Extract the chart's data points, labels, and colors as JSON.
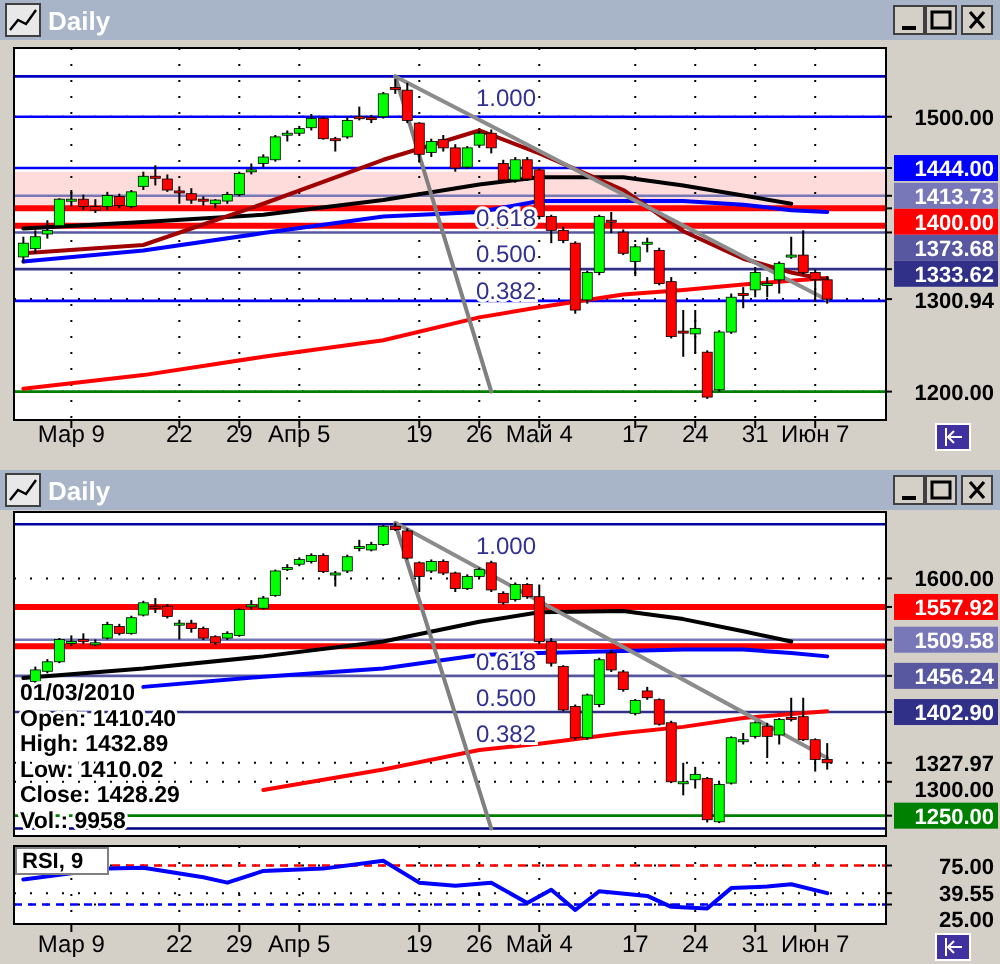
{
  "chart_data": [
    {
      "type": "candlestick",
      "title": "Daily",
      "grid": true,
      "categories": [
        null,
        null,
        null,
        null,
        "Мар 9",
        null,
        null,
        null,
        null,
        null,
        null,
        null,
        null,
        "22",
        null,
        null,
        null,
        null,
        "29",
        null,
        null,
        null,
        null,
        "Апр 5",
        null,
        null,
        null,
        null,
        null,
        null,
        null,
        null,
        null,
        "19",
        null,
        null,
        null,
        null,
        "26",
        null,
        null,
        null,
        null,
        "Май 4",
        null,
        null,
        null,
        null,
        null,
        null,
        null,
        "17",
        null,
        null,
        null,
        null,
        "24",
        null,
        null,
        null,
        null,
        "31",
        null,
        null,
        null,
        null,
        "Июн 7",
        null
      ],
      "ylim": [
        1169,
        1575
      ],
      "yticks": [
        {
          "value": 1200,
          "label": "1200.00"
        },
        {
          "value": 1500,
          "label": "1500.00"
        },
        {
          "value": 1300.94,
          "label": "1300.94"
        }
      ],
      "ohlc": [
        [
          1347,
          1369,
          1340,
          1362
        ],
        [
          1356,
          1376,
          1351,
          1369
        ],
        [
          1372,
          1387,
          1367,
          1376
        ],
        [
          1381,
          1411,
          1379,
          1410
        ],
        [
          1408,
          1420,
          1402,
          1410
        ],
        [
          1410,
          1415,
          1398,
          1402
        ],
        [
          1402,
          1410,
          1395,
          1398
        ],
        [
          1402,
          1418,
          1398,
          1414
        ],
        [
          1413,
          1416,
          1400,
          1403
        ],
        [
          1402,
          1420,
          1400,
          1418
        ],
        [
          1424,
          1440,
          1420,
          1435
        ],
        [
          1435,
          1447,
          1425,
          1434
        ],
        [
          1432,
          1437,
          1418,
          1420
        ],
        [
          1419,
          1424,
          1405,
          1417
        ],
        [
          1416,
          1422,
          1405,
          1409
        ],
        [
          1410,
          1413,
          1403,
          1408
        ],
        [
          1405,
          1410,
          1400,
          1409
        ],
        [
          1408,
          1418,
          1405,
          1415
        ],
        [
          1415,
          1440,
          1413,
          1438
        ],
        [
          1441,
          1449,
          1437,
          1442
        ],
        [
          1449,
          1459,
          1445,
          1456
        ],
        [
          1453,
          1480,
          1451,
          1478
        ],
        [
          1482,
          1485,
          1473,
          1482
        ],
        [
          1482,
          1490,
          1479,
          1487
        ],
        [
          1488,
          1503,
          1485,
          1498
        ],
        [
          1498,
          1500,
          1475,
          1476
        ],
        [
          1476,
          1478,
          1462,
          1475
        ],
        [
          1478,
          1500,
          1476,
          1496
        ],
        [
          1500,
          1511,
          1496,
          1499
        ],
        [
          1499,
          1502,
          1493,
          1497
        ],
        [
          1500,
          1527,
          1498,
          1525
        ],
        [
          1532,
          1541,
          1525,
          1531
        ],
        [
          1529,
          1537,
          1493,
          1496
        ],
        [
          1493,
          1494,
          1450,
          1459
        ],
        [
          1461,
          1476,
          1456,
          1473
        ],
        [
          1475,
          1480,
          1462,
          1466
        ],
        [
          1466,
          1470,
          1440,
          1444
        ],
        [
          1445,
          1468,
          1443,
          1466
        ],
        [
          1469,
          1485,
          1466,
          1482
        ],
        [
          1482,
          1486,
          1460,
          1466
        ],
        [
          1449,
          1453,
          1428,
          1431
        ],
        [
          1431,
          1456,
          1428,
          1453
        ],
        [
          1453,
          1456,
          1430,
          1432
        ],
        [
          1442,
          1444,
          1388,
          1391
        ],
        [
          1391,
          1393,
          1362,
          1376
        ],
        [
          1376,
          1380,
          1362,
          1365
        ],
        [
          1362,
          1364,
          1285,
          1289
        ],
        [
          1300,
          1332,
          1296,
          1330
        ],
        [
          1330,
          1393,
          1327,
          1391
        ],
        [
          1387,
          1396,
          1373,
          1386
        ],
        [
          1374,
          1377,
          1349,
          1351
        ],
        [
          1342,
          1361,
          1326,
          1358
        ],
        [
          1363,
          1368,
          1352,
          1363
        ],
        [
          1354,
          1357,
          1316,
          1318
        ],
        [
          1320,
          1325,
          1258,
          1260
        ],
        [
          1266,
          1289,
          1238,
          1265
        ],
        [
          1263,
          1289,
          1242,
          1269
        ],
        [
          1243,
          1245,
          1192,
          1194
        ],
        [
          1202,
          1267,
          1200,
          1265
        ],
        [
          1265,
          1307,
          1263,
          1303
        ],
        [
          1307,
          1314,
          1291,
          1306
        ],
        [
          1311,
          1336,
          1303,
          1330
        ],
        [
          1318,
          1325,
          1303,
          1318
        ],
        [
          1322,
          1342,
          1307,
          1340
        ],
        [
          1349,
          1369,
          1345,
          1349
        ],
        [
          1349,
          1376,
          1328,
          1330
        ],
        [
          1330,
          1333,
          1298,
          1322
        ],
        [
          1322,
          1326,
          1296,
          1300.94
        ]
      ],
      "series": [
        {
          "type": "line",
          "color": "#ff0000",
          "values": [
            1203,
            null,
            null,
            null,
            null,
            null,
            null,
            null,
            null,
            null,
            1218,
            null,
            null,
            null,
            null,
            null,
            null,
            null,
            null,
            null,
            1238,
            null,
            null,
            null,
            null,
            null,
            null,
            null,
            null,
            null,
            1256,
            null,
            null,
            null,
            null,
            null,
            null,
            null,
            1281,
            null,
            null,
            null,
            null,
            1292,
            null,
            null,
            null,
            null,
            null,
            null,
            1306,
            null,
            null,
            null,
            null,
            1311,
            null,
            null,
            null,
            null,
            1317,
            null,
            null,
            null,
            1321,
            null,
            null,
            1324
          ]
        },
        {
          "type": "line",
          "color": "#0000ff",
          "values": [
            1342,
            null,
            null,
            null,
            null,
            null,
            null,
            null,
            null,
            null,
            1354,
            null,
            null,
            null,
            null,
            null,
            null,
            null,
            null,
            null,
            1373,
            null,
            null,
            null,
            null,
            null,
            null,
            null,
            null,
            null,
            1391,
            null,
            null,
            null,
            null,
            null,
            null,
            null,
            1396,
            null,
            null,
            null,
            null,
            1408,
            null,
            null,
            null,
            null,
            null,
            null,
            1408,
            null,
            null,
            null,
            null,
            1408,
            null,
            null,
            null,
            null,
            1404,
            null,
            null,
            null,
            1398,
            null,
            null,
            1396
          ]
        },
        {
          "type": "line",
          "color": "#000000",
          "values": [
            1378,
            null,
            null,
            null,
            null,
            null,
            null,
            null,
            null,
            null,
            1385,
            null,
            null,
            null,
            null,
            null,
            null,
            null,
            null,
            null,
            1393,
            null,
            null,
            null,
            null,
            null,
            null,
            null,
            null,
            null,
            1409,
            null,
            null,
            null,
            null,
            null,
            null,
            null,
            1426,
            null,
            null,
            null,
            null,
            1434,
            null,
            null,
            null,
            null,
            null,
            null,
            1434,
            null,
            null,
            null,
            null,
            1425,
            null,
            null,
            null,
            null,
            1414,
            null,
            null,
            null,
            1405,
            null,
            null,
            null
          ]
        },
        {
          "type": "line",
          "color": "#a00000",
          "values": [
            1351,
            null,
            null,
            null,
            null,
            null,
            null,
            null,
            null,
            null,
            1360,
            null,
            null,
            null,
            null,
            null,
            null,
            null,
            null,
            null,
            1405,
            null,
            null,
            null,
            null,
            null,
            null,
            null,
            null,
            null,
            1453,
            null,
            null,
            null,
            null,
            null,
            null,
            null,
            1485,
            null,
            null,
            null,
            null,
            1460,
            null,
            null,
            null,
            null,
            null,
            null,
            1420,
            null,
            null,
            null,
            null,
            1375,
            null,
            null,
            null,
            null,
            1345,
            null,
            null,
            null,
            1330,
            null,
            null,
            1322
          ]
        },
        {
          "type": "line",
          "color": "#8c8c8c",
          "values": [
            null,
            null,
            null,
            null,
            null,
            null,
            null,
            null,
            null,
            null,
            null,
            null,
            null,
            null,
            null,
            null,
            null,
            null,
            null,
            null,
            null,
            null,
            null,
            null,
            null,
            null,
            null,
            null,
            null,
            null,
            null,
            1544,
            null,
            null,
            null,
            null,
            null,
            null,
            null,
            null,
            null,
            null,
            null,
            null,
            null,
            null,
            null,
            null,
            null,
            null,
            null,
            null,
            null,
            null,
            null,
            null,
            null,
            null,
            null,
            null,
            null,
            null,
            null,
            null,
            null,
            null,
            null,
            1300
          ]
        },
        {
          "type": "line",
          "color": "#808080",
          "values": [
            null,
            null,
            null,
            null,
            null,
            null,
            null,
            null,
            null,
            null,
            null,
            null,
            null,
            null,
            null,
            null,
            null,
            null,
            null,
            null,
            null,
            null,
            null,
            null,
            null,
            null,
            null,
            null,
            null,
            null,
            null,
            1544,
            null,
            null,
            null,
            null,
            null,
            null,
            null,
            1200,
            null,
            null,
            null,
            null,
            null,
            null,
            null,
            null,
            null,
            null,
            null,
            null,
            null,
            null,
            null,
            null,
            null,
            null,
            null,
            null,
            null,
            null,
            null,
            null,
            null,
            null,
            null,
            null
          ]
        }
      ],
      "bands": [
        {
          "axis": "y",
          "from": 1402,
          "to": 1440,
          "color": "#ffdcdc"
        }
      ],
      "ref_lines": [
        {
          "axis": "y",
          "value": 1544,
          "label": null,
          "color": "#0000c0"
        },
        {
          "axis": "y",
          "value": 1500,
          "label": null,
          "color": "#0000ff"
        },
        {
          "axis": "y",
          "value": 1444,
          "label": "1444.00",
          "color": "#0000ff"
        },
        {
          "axis": "y",
          "value": 1413.73,
          "label": "1413.73",
          "color": "#7878b8"
        },
        {
          "axis": "y",
          "value": 1400,
          "label": "1400.00",
          "color": "#ff0000"
        },
        {
          "axis": "y",
          "value": 1381,
          "label": null,
          "color": "#ff0000"
        },
        {
          "axis": "y",
          "value": 1373.68,
          "label": "1373.68",
          "color": "#5858a0"
        },
        {
          "axis": "y",
          "value": 1333.62,
          "label": "1333.62",
          "color": "#303088"
        },
        {
          "axis": "y",
          "value": 1299,
          "label": null,
          "color": "#0000ff"
        },
        {
          "axis": "y",
          "value": 1200,
          "label": null,
          "color": "#008000"
        }
      ],
      "annotations": [
        {
          "text": "1.000",
          "y": 1544
        },
        {
          "text": "0.618",
          "y": 1413.73
        },
        {
          "text": "0.500",
          "y": 1373.68
        },
        {
          "text": "0.382",
          "y": 1333.62
        }
      ]
    },
    {
      "type": "candlestick",
      "title": "Daily",
      "grid": "y",
      "tick_labels": "y",
      "categories": [
        null,
        null,
        null,
        null,
        null,
        null,
        null,
        null,
        null,
        null,
        null,
        null,
        null,
        null,
        null,
        null,
        null,
        null,
        null,
        null,
        null,
        null,
        null,
        null,
        null,
        null,
        null,
        null,
        null,
        null,
        null,
        null,
        null,
        null,
        null,
        null,
        null,
        null,
        null,
        null,
        null,
        null,
        null,
        null,
        null,
        null,
        null,
        null,
        null,
        null,
        null,
        null,
        null,
        null,
        null,
        null,
        null,
        null,
        null,
        null,
        null,
        null,
        null,
        null,
        null,
        null,
        null,
        null
      ],
      "ylim": [
        1220,
        1698
      ],
      "yticks": [
        {
          "value": 1300,
          "label": "1300.00"
        },
        {
          "value": 1600,
          "label": "1600.00"
        },
        {
          "value": 1327.97,
          "label": "1327.97"
        }
      ],
      "ohlc": [
        null,
        [
          1448,
          1470,
          1443,
          1465
        ],
        [
          1463,
          1481,
          1460,
          1477
        ],
        [
          1477,
          1512,
          1475,
          1510
        ],
        [
          1507,
          1516,
          1500,
          1507
        ],
        [
          1510,
          1519,
          1503,
          1509
        ],
        [
          1505,
          1510,
          1500,
          1505
        ],
        [
          1512,
          1536,
          1510,
          1532
        ],
        [
          1529,
          1533,
          1516,
          1519
        ],
        [
          1519,
          1545,
          1517,
          1542
        ],
        [
          1546,
          1567,
          1544,
          1564
        ],
        [
          1559,
          1571,
          1549,
          1558
        ],
        [
          1559,
          1562,
          1541,
          1544
        ],
        [
          1534,
          1539,
          1510,
          1534
        ],
        [
          1534,
          1539,
          1520,
          1526
        ],
        [
          1526,
          1529,
          1509,
          1512
        ],
        [
          1514,
          1516,
          1502,
          1505
        ],
        [
          1512,
          1522,
          1509,
          1519
        ],
        [
          1516,
          1556,
          1514,
          1554
        ],
        [
          1561,
          1568,
          1554,
          1561
        ],
        [
          1556,
          1574,
          1554,
          1571
        ],
        [
          1575,
          1613,
          1573,
          1611
        ],
        [
          1616,
          1621,
          1611,
          1616
        ],
        [
          1621,
          1631,
          1618,
          1628
        ],
        [
          1625,
          1637,
          1622,
          1634
        ],
        [
          1634,
          1637,
          1608,
          1610
        ],
        [
          1608,
          1611,
          1588,
          1608
        ],
        [
          1611,
          1635,
          1608,
          1632
        ],
        [
          1647,
          1657,
          1640,
          1647
        ],
        [
          1642,
          1654,
          1640,
          1650
        ],
        [
          1650,
          1679,
          1648,
          1677
        ],
        [
          1677,
          1682,
          1670,
          1672
        ],
        [
          1670,
          1674,
          1628,
          1630
        ],
        [
          1623,
          1625,
          1580,
          1603
        ],
        [
          1611,
          1628,
          1608,
          1625
        ],
        [
          1625,
          1628,
          1605,
          1608
        ],
        [
          1608,
          1610,
          1580,
          1585
        ],
        [
          1585,
          1606,
          1583,
          1603
        ],
        [
          1603,
          1616,
          1600,
          1613
        ],
        [
          1623,
          1626,
          1580,
          1583
        ],
        [
          1578,
          1581,
          1561,
          1564
        ],
        [
          1569,
          1594,
          1566,
          1591
        ],
        [
          1591,
          1593,
          1570,
          1573
        ],
        [
          1573,
          1591,
          1503,
          1507
        ],
        [
          1507,
          1512,
          1470,
          1475
        ],
        [
          1470,
          1472,
          1404,
          1406
        ],
        [
          1411,
          1414,
          1362,
          1365
        ],
        [
          1365,
          1430,
          1362,
          1428
        ],
        [
          1414,
          1483,
          1410,
          1480
        ],
        [
          1490,
          1494,
          1462,
          1465
        ],
        [
          1462,
          1465,
          1433,
          1436
        ],
        [
          1401,
          1422,
          1398,
          1420
        ],
        [
          1434,
          1440,
          1421,
          1424
        ],
        [
          1421,
          1423,
          1383,
          1385
        ],
        [
          1387,
          1390,
          1298,
          1300
        ],
        [
          1300,
          1328,
          1280,
          1300
        ],
        [
          1303,
          1322,
          1290,
          1311
        ],
        [
          1305,
          1307,
          1240,
          1244
        ],
        [
          1241,
          1299,
          1239,
          1296
        ],
        [
          1298,
          1367,
          1296,
          1365
        ],
        [
          1362,
          1372,
          1355,
          1362
        ],
        [
          1367,
          1389,
          1364,
          1387
        ],
        [
          1382,
          1387,
          1335,
          1367
        ],
        [
          1369,
          1394,
          1355,
          1392
        ],
        [
          1395,
          1424,
          1389,
          1394
        ],
        [
          1396,
          1424,
          1360,
          1362
        ],
        [
          1362,
          1364,
          1315,
          1333
        ],
        [
          1333,
          1357,
          1318,
          1327.97
        ]
      ],
      "series": [
        {
          "type": "line",
          "color": "#ff0000",
          "values": [
            null,
            null,
            null,
            null,
            null,
            null,
            null,
            null,
            null,
            null,
            null,
            null,
            null,
            null,
            null,
            null,
            null,
            null,
            null,
            null,
            1288,
            null,
            null,
            null,
            null,
            null,
            null,
            null,
            null,
            null,
            1318,
            null,
            null,
            null,
            null,
            null,
            null,
            null,
            1347,
            null,
            null,
            null,
            null,
            1356,
            null,
            null,
            null,
            null,
            null,
            null,
            1372,
            null,
            null,
            null,
            null,
            1381,
            null,
            null,
            null,
            null,
            1394,
            null,
            null,
            null,
            1400,
            null,
            null,
            1404
          ]
        },
        {
          "type": "line",
          "color": "#0000ff",
          "values": [
            null,
            null,
            null,
            null,
            null,
            null,
            null,
            null,
            null,
            null,
            1440,
            null,
            null,
            null,
            null,
            null,
            null,
            null,
            null,
            null,
            1455,
            null,
            null,
            null,
            null,
            null,
            null,
            null,
            null,
            null,
            1467,
            null,
            null,
            null,
            null,
            null,
            null,
            null,
            1487,
            null,
            null,
            null,
            null,
            1490,
            null,
            null,
            null,
            null,
            null,
            null,
            1493,
            null,
            null,
            null,
            null,
            1495,
            null,
            null,
            null,
            null,
            1495,
            null,
            null,
            null,
            1490,
            null,
            null,
            1485
          ]
        },
        {
          "type": "line",
          "color": "#000000",
          "values": [
            1453,
            null,
            null,
            null,
            null,
            null,
            null,
            null,
            null,
            null,
            1467,
            null,
            null,
            null,
            null,
            null,
            null,
            null,
            null,
            null,
            1485,
            null,
            null,
            null,
            null,
            null,
            null,
            null,
            null,
            null,
            1507,
            null,
            null,
            null,
            null,
            null,
            null,
            null,
            1536,
            null,
            null,
            null,
            null,
            1550,
            null,
            null,
            null,
            null,
            null,
            null,
            1552,
            null,
            null,
            null,
            null,
            1540,
            null,
            null,
            null,
            null,
            1522,
            null,
            null,
            null,
            1507,
            null,
            null,
            null
          ]
        },
        {
          "type": "line",
          "color": "#8c8c8c",
          "values": [
            null,
            null,
            null,
            null,
            null,
            null,
            null,
            null,
            null,
            null,
            null,
            null,
            null,
            null,
            null,
            null,
            null,
            null,
            null,
            null,
            null,
            null,
            null,
            null,
            null,
            null,
            null,
            null,
            null,
            null,
            null,
            1682,
            null,
            null,
            null,
            null,
            null,
            null,
            null,
            null,
            null,
            null,
            null,
            null,
            null,
            null,
            null,
            null,
            null,
            null,
            null,
            null,
            null,
            null,
            null,
            null,
            null,
            null,
            null,
            null,
            null,
            null,
            null,
            null,
            null,
            null,
            null,
            1335
          ]
        },
        {
          "type": "line",
          "color": "#808080",
          "values": [
            null,
            null,
            null,
            null,
            null,
            null,
            null,
            null,
            null,
            null,
            null,
            null,
            null,
            null,
            null,
            null,
            null,
            null,
            null,
            null,
            null,
            null,
            null,
            null,
            null,
            null,
            null,
            null,
            null,
            null,
            null,
            1680,
            null,
            null,
            null,
            null,
            null,
            null,
            null,
            1231,
            null,
            null,
            null,
            null,
            null,
            null,
            null,
            null,
            null,
            null,
            null,
            null,
            null,
            null,
            null,
            null,
            null,
            null,
            null,
            null,
            null,
            null,
            null,
            null,
            null,
            null,
            null,
            null
          ]
        }
      ],
      "ref_lines": [
        {
          "axis": "y",
          "value": 1680,
          "label": null,
          "color": "#0000a0"
        },
        {
          "axis": "y",
          "value": 1557.92,
          "label": "1557.92",
          "color": "#ff0000"
        },
        {
          "axis": "y",
          "value": 1509.58,
          "label": "1509.58",
          "color": "#7878b8"
        },
        {
          "axis": "y",
          "value": 1500,
          "label": null,
          "color": "#ff0000"
        },
        {
          "axis": "y",
          "value": 1456.24,
          "label": "1456.24",
          "color": "#5858a0"
        },
        {
          "axis": "y",
          "value": 1402.9,
          "label": "1402.90",
          "color": "#303088"
        },
        {
          "axis": "y",
          "value": 1250,
          "label": "1250.00",
          "color": "#008000"
        },
        {
          "axis": "y",
          "value": 1231,
          "label": null,
          "color": "#000080"
        }
      ],
      "annotations": [
        {
          "text": "1.000",
          "y": 1680
        },
        {
          "text": "0.618",
          "y": 1509.58
        },
        {
          "text": "0.500",
          "y": 1456.24
        },
        {
          "text": "0.382",
          "y": 1402.9
        },
        "01/03/2010",
        "Open: 1410.40",
        "High: 1432.89",
        "Low: 1410.02",
        "Close: 1428.29",
        "Vol.: 9958"
      ]
    },
    {
      "type": "line",
      "title": "RSI, 9",
      "grid": true,
      "categories": [
        null,
        null,
        null,
        null,
        "Мар 9",
        null,
        null,
        null,
        null,
        null,
        null,
        null,
        null,
        "22",
        null,
        null,
        null,
        null,
        "29",
        null,
        null,
        null,
        null,
        "Апр 5",
        null,
        null,
        null,
        null,
        null,
        null,
        null,
        null,
        null,
        "19",
        null,
        null,
        null,
        null,
        "26",
        null,
        null,
        null,
        null,
        "Май 4",
        null,
        null,
        null,
        null,
        null,
        null,
        null,
        "17",
        null,
        null,
        null,
        null,
        "24",
        null,
        null,
        null,
        null,
        "31",
        null,
        null,
        null,
        null,
        "Июн 7",
        null
      ],
      "ylim": [
        0,
        100
      ],
      "yticks": [
        {
          "value": 75,
          "label": "75.00"
        },
        {
          "value": 25,
          "label": "25.00"
        },
        {
          "value": 39.55,
          "label": "39.55"
        }
      ],
      "series": [
        {
          "color": "#0000ff",
          "values": [
            57,
            null,
            null,
            null,
            null,
            null,
            null,
            71,
            null,
            null,
            72,
            null,
            null,
            null,
            null,
            60,
            null,
            53,
            null,
            null,
            68,
            null,
            null,
            null,
            null,
            71,
            null,
            null,
            null,
            null,
            81,
            null,
            null,
            53,
            null,
            null,
            49,
            null,
            null,
            53,
            null,
            null,
            27,
            null,
            44,
            null,
            18,
            null,
            42,
            null,
            null,
            null,
            36,
            null,
            22,
            null,
            null,
            20,
            null,
            46,
            null,
            null,
            48,
            null,
            51,
            null,
            null,
            39.55
          ]
        }
      ],
      "ref_lines": [
        {
          "axis": "y",
          "value": 75,
          "label": null,
          "color": "#ff0000",
          "line_style": "dashed"
        },
        {
          "axis": "y",
          "value": 25,
          "label": null,
          "color": "#0000ff",
          "line_style": "dashed"
        }
      ]
    }
  ]
}
